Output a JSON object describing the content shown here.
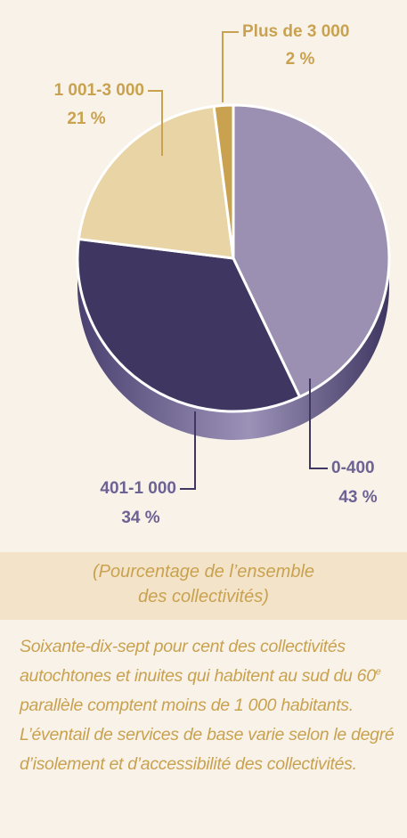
{
  "chart_data": {
    "type": "pie",
    "categories": [
      "0-400",
      "401-1 000",
      "1 001-3 000",
      "Plus de 3 000"
    ],
    "values": [
      43,
      34,
      21,
      2
    ],
    "value_labels": [
      "43 %",
      "34 %",
      "21 %",
      "2 %"
    ],
    "colors": [
      "#9b90b1",
      "#3f3761",
      "#e9d4a6",
      "#c9a24f"
    ],
    "label_colors": [
      "#6c6294",
      "#6c6294",
      "#c9a24f",
      "#c9a24f"
    ]
  },
  "caption": "(Pourcentage de l’ensemble des collectivités)",
  "body": [
    "Soixante-dix-sept pour cent des collectivités autochtones et inuites qui habitent au sud du 60",
    "e",
    " parallèle comptent moins de 1 000 habitants. L’éventail de services de base varie selon le degré d’isolement et d’accessibilité des collectivités."
  ]
}
